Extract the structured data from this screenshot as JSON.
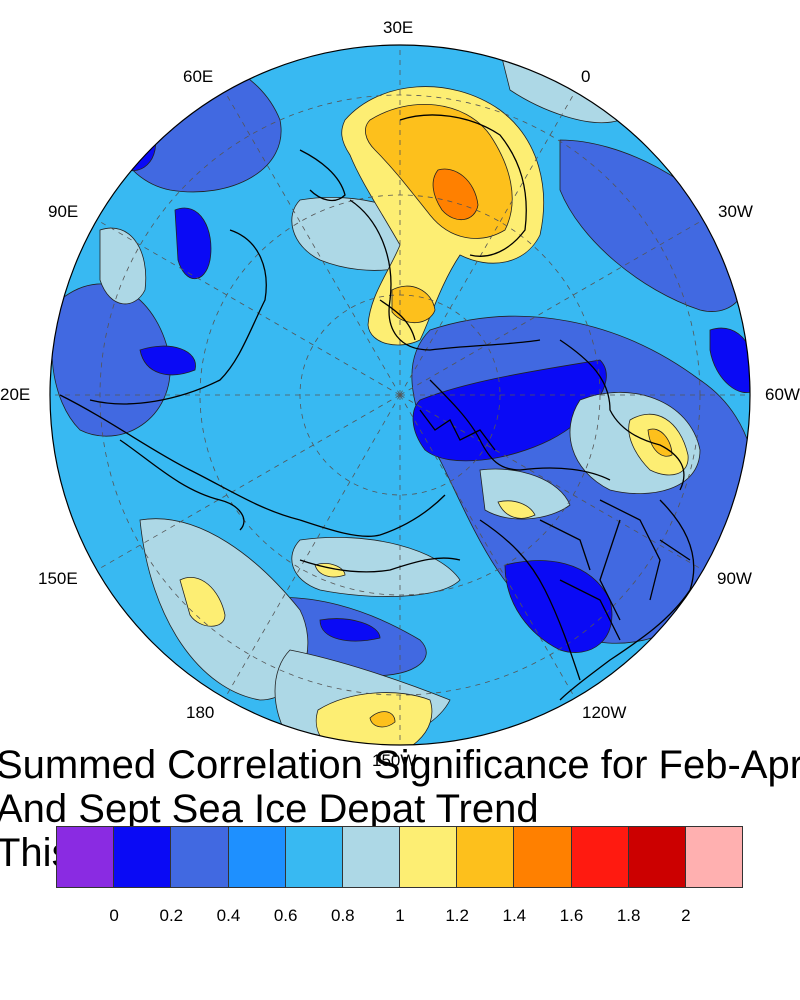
{
  "title": {
    "line1": "Summed Correlation Significance for Feb-Apr",
    "line2": "And Sept Sea Ice Depat Trend",
    "line3": "This"
  },
  "longitude_labels": [
    {
      "text": "30E"
    },
    {
      "text": "0"
    },
    {
      "text": "60E"
    },
    {
      "text": "30W"
    },
    {
      "text": "90E"
    },
    {
      "text": "60W"
    },
    {
      "text": "20E"
    },
    {
      "text": "90W"
    },
    {
      "text": "150E"
    },
    {
      "text": "120W"
    },
    {
      "text": "180"
    },
    {
      "text": "150W"
    }
  ],
  "colorbar": {
    "colors": [
      "#8a2be2",
      "#0a0af5",
      "#4169e1",
      "#1e90ff",
      "#38b9f2",
      "#add8e6",
      "#fdee73",
      "#fdc01c",
      "#ff8000",
      "#ff1a10",
      "#cc0000",
      "#ffb0b0"
    ],
    "ticks": [
      "0",
      "0.2",
      "0.4",
      "0.6",
      "0.8",
      "1",
      "1.2",
      "1.4",
      "1.6",
      "1.8",
      "2"
    ]
  },
  "map": {
    "projection": "north polar stereographic",
    "fill_palette": {
      "base": "#38b9f2",
      "medium_blue": "#1e90ff",
      "royal_blue": "#4169e1",
      "deep_blue": "#0a0af5",
      "light_blue": "#add8e6",
      "yellow": "#fdee73",
      "orange_yellow": "#fdc01c",
      "orange": "#ff8000"
    }
  }
}
